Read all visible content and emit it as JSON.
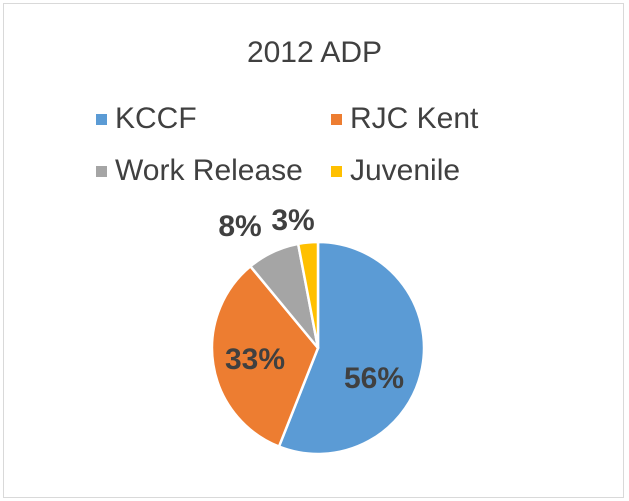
{
  "chart_data": {
    "type": "pie",
    "title": "2012 ADP",
    "categories": [
      "KCCF",
      "RJC Kent",
      "Work Release",
      "Juvenile"
    ],
    "values": [
      56,
      33,
      8,
      3
    ],
    "data_labels": [
      "56%",
      "33%",
      "8%",
      "3%"
    ],
    "colors": [
      "#5b9bd5",
      "#ed7d31",
      "#a5a5a5",
      "#ffc000"
    ],
    "legend_position": "top"
  }
}
